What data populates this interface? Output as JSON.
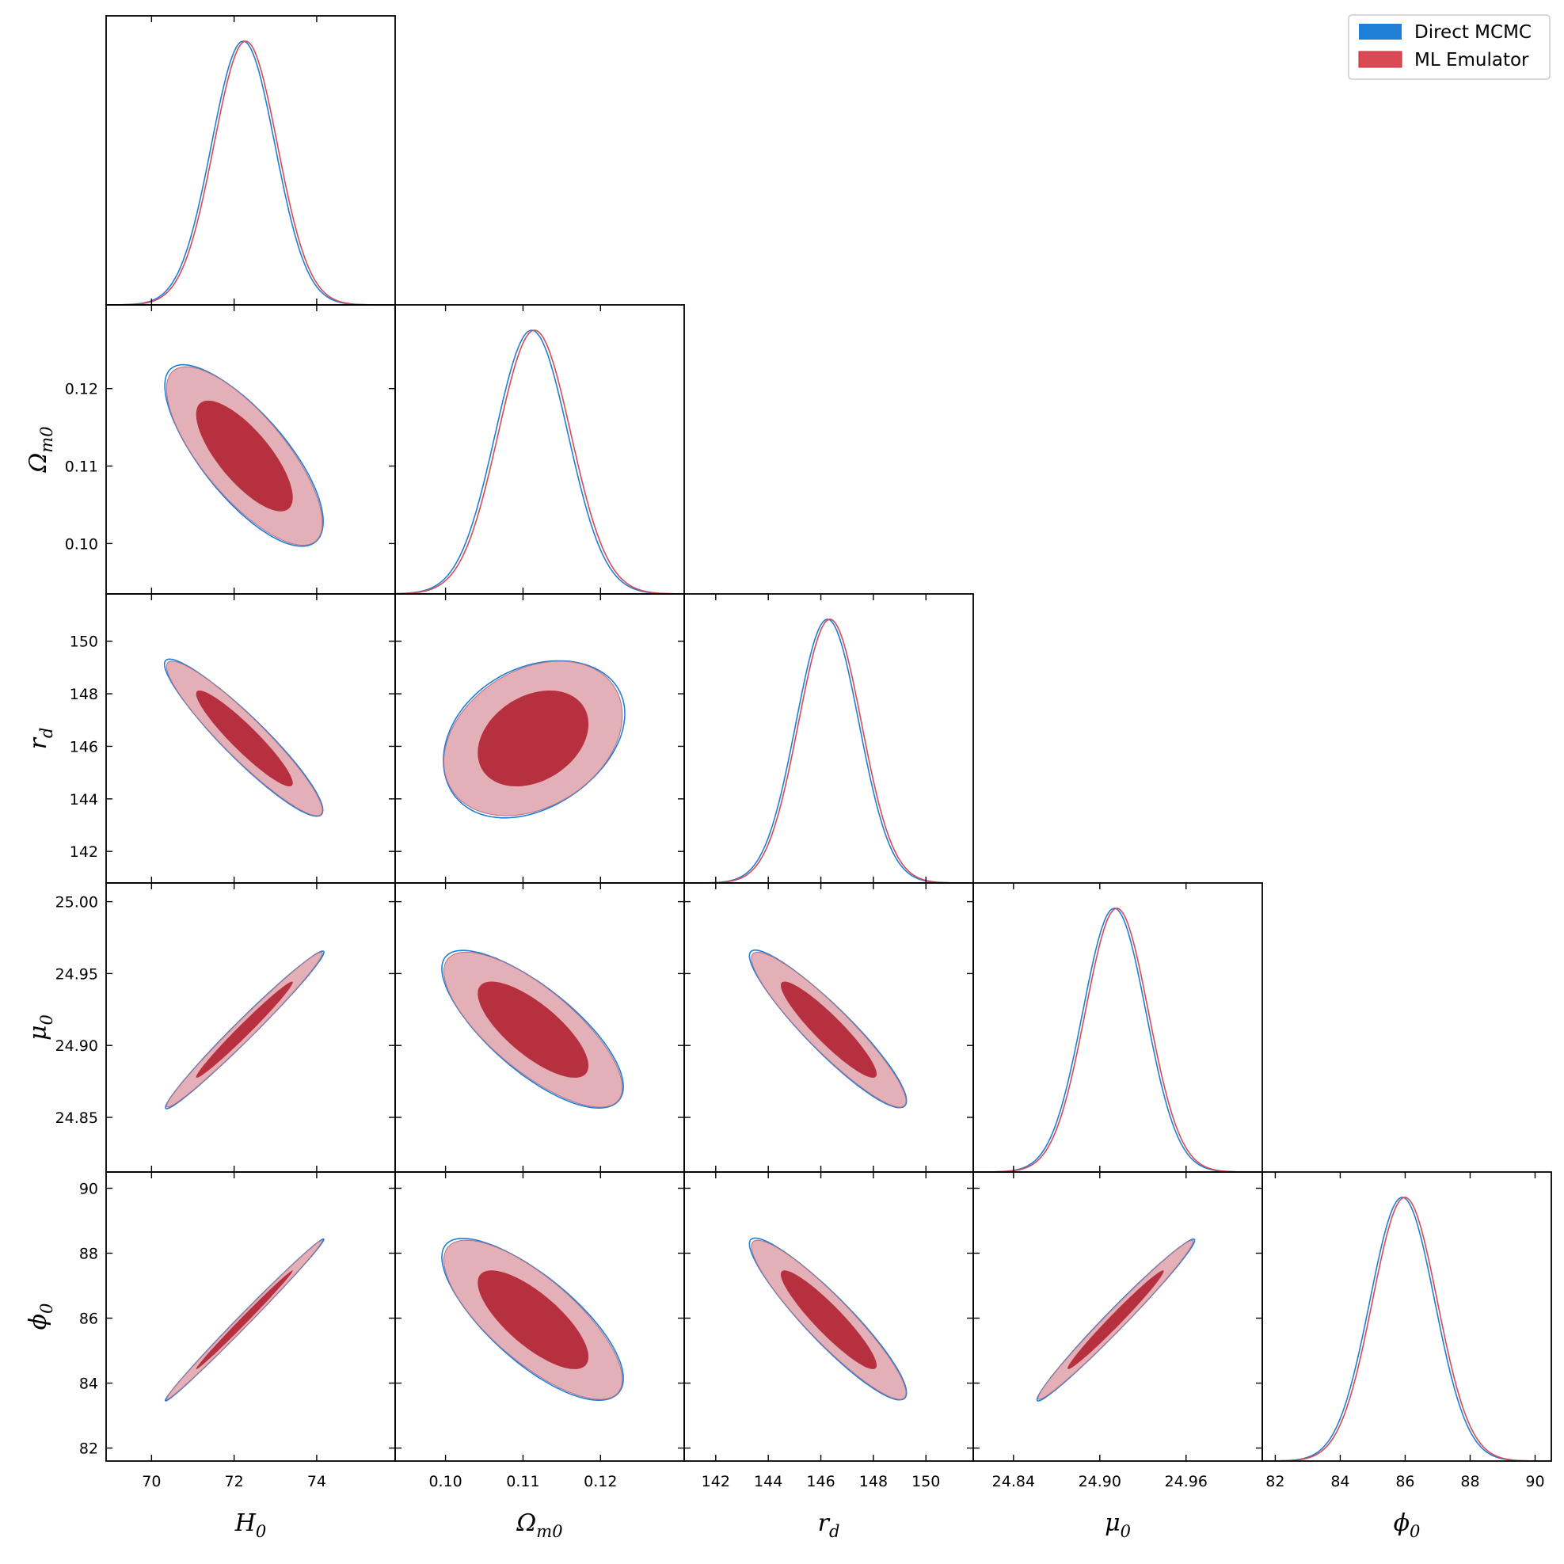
{
  "chart_data": {
    "type": "corner",
    "parameters": [
      {
        "symbol": "H",
        "sub": "0",
        "range": [
          68.9,
          75.9
        ],
        "ticks": [
          70,
          72,
          74
        ],
        "tick_labels": [
          "70",
          "72",
          "74"
        ],
        "mean": 72.25,
        "sigma": 0.77
      },
      {
        "symbol": "Ω",
        "sub": "m0",
        "range": [
          0.0935,
          0.1308
        ],
        "ticks": [
          0.1,
          0.11,
          0.12
        ],
        "tick_labels": [
          "0.10",
          "0.11",
          "0.12"
        ],
        "mean": 0.1113,
        "sigma": 0.0047
      },
      {
        "symbol": "r",
        "sub": "d",
        "range": [
          140.8,
          151.8
        ],
        "ticks": [
          142,
          144,
          146,
          148,
          150
        ],
        "tick_labels": [
          "142",
          "144",
          "146",
          "148",
          "150"
        ],
        "mean": 146.3,
        "sigma": 1.2
      },
      {
        "symbol": "μ",
        "sub": "0",
        "range": [
          24.812,
          25.013
        ],
        "ticks": [
          24.84,
          24.9,
          24.96
        ],
        "tick_labels": [
          "24.84",
          "24.90",
          "24.96"
        ],
        "mean": 24.911,
        "sigma": 0.022
      },
      {
        "symbol": "ϕ",
        "sub": "0",
        "range": [
          81.6,
          90.5
        ],
        "ticks": [
          82,
          84,
          86,
          88,
          90
        ],
        "tick_labels": [
          "82",
          "84",
          "86",
          "88",
          "90"
        ],
        "mean": 85.95,
        "sigma": 1.0
      }
    ],
    "y_tick_labels": {
      "1": [
        "0.10",
        "0.11",
        "0.12"
      ],
      "2": [
        "142",
        "144",
        "146",
        "148",
        "150"
      ],
      "3": [
        "24.85",
        "24.90",
        "24.95",
        "25.00"
      ],
      "4": [
        "82",
        "84",
        "86",
        "88",
        "90"
      ]
    },
    "y_ticks": {
      "1": [
        0.1,
        0.11,
        0.12
      ],
      "2": [
        142,
        144,
        146,
        148,
        150
      ],
      "3": [
        24.85,
        24.9,
        24.95,
        25.0
      ],
      "4": [
        82,
        84,
        86,
        88,
        90
      ]
    },
    "correlations": {
      "1-0": -0.75,
      "2-0": -0.93,
      "2-1": 0.3,
      "3-0": 0.985,
      "3-1": -0.75,
      "3-2": -0.92,
      "4-0": 0.995,
      "4-1": -0.75,
      "4-2": -0.92,
      "4-3": 0.985
    },
    "series": [
      {
        "name": "Direct MCMC",
        "color": "#1f7fd6"
      },
      {
        "name": "ML Emulator",
        "color": "#d94a55"
      }
    ],
    "contour_colors": {
      "outer": "#e3b0b8",
      "inner": "#b7303f"
    },
    "legend_position": "top-right",
    "grid": false
  }
}
